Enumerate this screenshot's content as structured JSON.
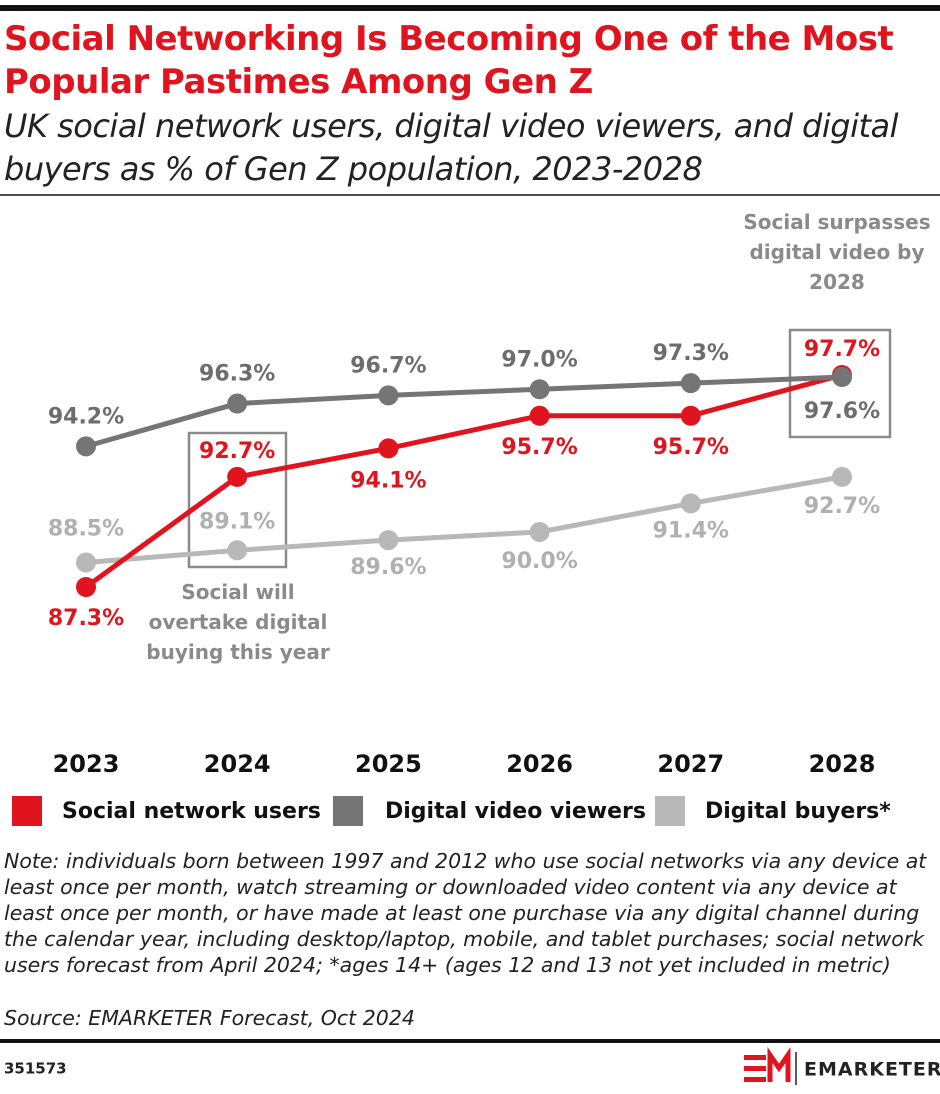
{
  "chart_data": {
    "type": "line",
    "title": "Social Networking Is Becoming One of the Most Popular Pastimes Among Gen Z",
    "subtitle": "UK social network users, digital video viewers, and digital buyers as % of Gen Z population, 2023-2028",
    "categories": [
      "2023",
      "2024",
      "2025",
      "2026",
      "2027",
      "2028"
    ],
    "series": [
      {
        "name": "Social network users",
        "color": "#e0141e",
        "values": [
          87.3,
          92.7,
          94.1,
          95.7,
          95.7,
          97.7
        ],
        "value_labels": [
          "87.3%",
          "92.7%",
          "94.1%",
          "95.7%",
          "95.7%",
          "97.7%"
        ]
      },
      {
        "name": "Digital video viewers",
        "color": "#757575",
        "values": [
          94.2,
          96.3,
          96.7,
          97.0,
          97.3,
          97.6
        ],
        "value_labels": [
          "94.2%",
          "96.3%",
          "96.7%",
          "97.0%",
          "97.3%",
          "97.6%"
        ]
      },
      {
        "name": "Digital buyers*",
        "color": "#b8b8b8",
        "values": [
          88.5,
          89.1,
          89.6,
          90.0,
          91.4,
          92.7
        ],
        "value_labels": [
          "88.5%",
          "89.1%",
          "89.6%",
          "90.0%",
          "91.4%",
          "92.7%"
        ]
      }
    ],
    "annotations": [
      "Social will overtake digital buying this year",
      "Social surpasses digital video by 2028"
    ],
    "note": "Note: individuals born between 1997 and 2012 who use social networks via any device at least once per month, watch streaming or downloaded video content via any device at least once per month, or have made at least one purchase via any digital channel during the calendar year, including desktop/laptop, mobile, and tablet purchases; social network users forecast from April 2024; *ages 14+ (ages 12 and 13 not yet included in metric)",
    "source": "Source: EMARKETER Forecast, Oct 2024",
    "chart_id": "351573",
    "brand": "EMARKETER"
  }
}
